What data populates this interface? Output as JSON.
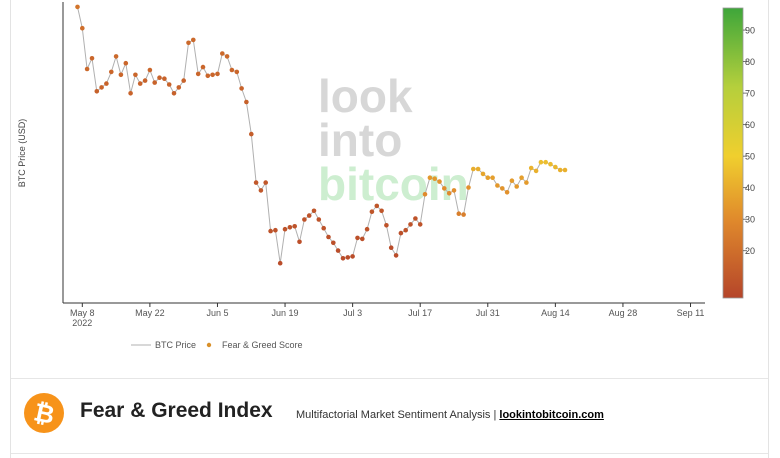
{
  "chart_data": {
    "type": "scatter",
    "ylabel": "BTC Price (USD)",
    "x_ticks": [
      {
        "label": "May 8",
        "sublabel": "2022",
        "day": 128
      },
      {
        "label": "May 22",
        "day": 142
      },
      {
        "label": "Jun 5",
        "day": 156
      },
      {
        "label": "Jun 19",
        "day": 170
      },
      {
        "label": "Jul 3",
        "day": 184
      },
      {
        "label": "Jul 17",
        "day": 198
      },
      {
        "label": "Jul 31",
        "day": 212
      },
      {
        "label": "Aug 14",
        "day": 226
      },
      {
        "label": "Aug 28",
        "day": 240
      },
      {
        "label": "Sep 11",
        "day": 254
      }
    ],
    "xlim": [
      124,
      257
    ],
    "ylim": [
      10000,
      41000
    ],
    "series": [
      {
        "name": "BTC Price",
        "style": "line",
        "color": "#b0b0b0"
      },
      {
        "name": "Fear & Greed Score",
        "style": "marker",
        "color": "#d9902a"
      }
    ],
    "points": [
      {
        "day": 127,
        "price": 40500,
        "score": 22
      },
      {
        "day": 128,
        "price": 38300,
        "score": 20
      },
      {
        "day": 129,
        "price": 34100,
        "score": 18
      },
      {
        "day": 130,
        "price": 35200,
        "score": 17
      },
      {
        "day": 131,
        "price": 31800,
        "score": 15
      },
      {
        "day": 132,
        "price": 32200,
        "score": 16
      },
      {
        "day": 133,
        "price": 32600,
        "score": 16
      },
      {
        "day": 134,
        "price": 33800,
        "score": 17
      },
      {
        "day": 135,
        "price": 35400,
        "score": 18
      },
      {
        "day": 136,
        "price": 33500,
        "score": 17
      },
      {
        "day": 137,
        "price": 34700,
        "score": 17
      },
      {
        "day": 138,
        "price": 31600,
        "score": 16
      },
      {
        "day": 139,
        "price": 33500,
        "score": 17
      },
      {
        "day": 140,
        "price": 32600,
        "score": 16
      },
      {
        "day": 141,
        "price": 32900,
        "score": 16
      },
      {
        "day": 142,
        "price": 34000,
        "score": 17
      },
      {
        "day": 143,
        "price": 32700,
        "score": 16
      },
      {
        "day": 144,
        "price": 33200,
        "score": 16
      },
      {
        "day": 145,
        "price": 33100,
        "score": 16
      },
      {
        "day": 146,
        "price": 32500,
        "score": 16
      },
      {
        "day": 147,
        "price": 31600,
        "score": 15
      },
      {
        "day": 148,
        "price": 32200,
        "score": 16
      },
      {
        "day": 149,
        "price": 32900,
        "score": 16
      },
      {
        "day": 150,
        "price": 36800,
        "score": 18
      },
      {
        "day": 151,
        "price": 37100,
        "score": 18
      },
      {
        "day": 152,
        "price": 33600,
        "score": 17
      },
      {
        "day": 153,
        "price": 34300,
        "score": 17
      },
      {
        "day": 154,
        "price": 33400,
        "score": 17
      },
      {
        "day": 155,
        "price": 33500,
        "score": 17
      },
      {
        "day": 156,
        "price": 33600,
        "score": 17
      },
      {
        "day": 157,
        "price": 35700,
        "score": 18
      },
      {
        "day": 158,
        "price": 35400,
        "score": 18
      },
      {
        "day": 159,
        "price": 34000,
        "score": 17
      },
      {
        "day": 160,
        "price": 33800,
        "score": 17
      },
      {
        "day": 161,
        "price": 32100,
        "score": 16
      },
      {
        "day": 162,
        "price": 30700,
        "score": 15
      },
      {
        "day": 163,
        "price": 27400,
        "score": 14
      },
      {
        "day": 164,
        "price": 22400,
        "score": 12
      },
      {
        "day": 165,
        "price": 21600,
        "score": 12
      },
      {
        "day": 166,
        "price": 22400,
        "score": 12
      },
      {
        "day": 167,
        "price": 17400,
        "score": 10
      },
      {
        "day": 168,
        "price": 17500,
        "score": 10
      },
      {
        "day": 169,
        "price": 14100,
        "score": 8
      },
      {
        "day": 170,
        "price": 17600,
        "score": 10
      },
      {
        "day": 171,
        "price": 17800,
        "score": 10
      },
      {
        "day": 172,
        "price": 17900,
        "score": 10
      },
      {
        "day": 173,
        "price": 16300,
        "score": 9
      },
      {
        "day": 174,
        "price": 18600,
        "score": 10
      },
      {
        "day": 175,
        "price": 19000,
        "score": 10
      },
      {
        "day": 176,
        "price": 19500,
        "score": 11
      },
      {
        "day": 177,
        "price": 18600,
        "score": 10
      },
      {
        "day": 178,
        "price": 17700,
        "score": 10
      },
      {
        "day": 179,
        "price": 16800,
        "score": 9
      },
      {
        "day": 180,
        "price": 16200,
        "score": 9
      },
      {
        "day": 181,
        "price": 15400,
        "score": 8
      },
      {
        "day": 182,
        "price": 14600,
        "score": 8
      },
      {
        "day": 183,
        "price": 14700,
        "score": 8
      },
      {
        "day": 184,
        "price": 14800,
        "score": 8
      },
      {
        "day": 185,
        "price": 16700,
        "score": 9
      },
      {
        "day": 186,
        "price": 16600,
        "score": 9
      },
      {
        "day": 187,
        "price": 17600,
        "score": 10
      },
      {
        "day": 188,
        "price": 19400,
        "score": 11
      },
      {
        "day": 189,
        "price": 20000,
        "score": 11
      },
      {
        "day": 190,
        "price": 19500,
        "score": 11
      },
      {
        "day": 191,
        "price": 18000,
        "score": 10
      },
      {
        "day": 192,
        "price": 15700,
        "score": 8
      },
      {
        "day": 193,
        "price": 14900,
        "score": 8
      },
      {
        "day": 194,
        "price": 17200,
        "score": 9
      },
      {
        "day": 195,
        "price": 17500,
        "score": 10
      },
      {
        "day": 196,
        "price": 18100,
        "score": 10
      },
      {
        "day": 197,
        "price": 18700,
        "score": 10
      },
      {
        "day": 198,
        "price": 18100,
        "score": 10
      },
      {
        "day": 199,
        "price": 21200,
        "score": 30
      },
      {
        "day": 200,
        "price": 22900,
        "score": 34
      },
      {
        "day": 201,
        "price": 22800,
        "score": 34
      },
      {
        "day": 202,
        "price": 22500,
        "score": 33
      },
      {
        "day": 203,
        "price": 21800,
        "score": 31
      },
      {
        "day": 204,
        "price": 21300,
        "score": 30
      },
      {
        "day": 205,
        "price": 21600,
        "score": 31
      },
      {
        "day": 206,
        "price": 19200,
        "score": 26
      },
      {
        "day": 207,
        "price": 19100,
        "score": 26
      },
      {
        "day": 208,
        "price": 21900,
        "score": 32
      },
      {
        "day": 209,
        "price": 23800,
        "score": 40
      },
      {
        "day": 210,
        "price": 23800,
        "score": 40
      },
      {
        "day": 211,
        "price": 23300,
        "score": 38
      },
      {
        "day": 212,
        "price": 22900,
        "score": 36
      },
      {
        "day": 213,
        "price": 22900,
        "score": 36
      },
      {
        "day": 214,
        "price": 22100,
        "score": 34
      },
      {
        "day": 215,
        "price": 21800,
        "score": 33
      },
      {
        "day": 216,
        "price": 21400,
        "score": 32
      },
      {
        "day": 217,
        "price": 22600,
        "score": 35
      },
      {
        "day": 218,
        "price": 22000,
        "score": 34
      },
      {
        "day": 219,
        "price": 22900,
        "score": 36
      },
      {
        "day": 220,
        "price": 22400,
        "score": 35
      },
      {
        "day": 221,
        "price": 23900,
        "score": 42
      },
      {
        "day": 222,
        "price": 23600,
        "score": 41
      },
      {
        "day": 223,
        "price": 24500,
        "score": 45
      },
      {
        "day": 224,
        "price": 24500,
        "score": 45
      },
      {
        "day": 225,
        "price": 24300,
        "score": 44
      },
      {
        "day": 226,
        "price": 24000,
        "score": 43
      },
      {
        "day": 227,
        "price": 23700,
        "score": 41
      },
      {
        "day": 228,
        "price": 23700,
        "score": 41
      }
    ],
    "colorbar": {
      "ticks": [
        20,
        30,
        40,
        50,
        60,
        70,
        80,
        90
      ],
      "range": [
        5,
        97
      ],
      "stops": [
        {
          "value": 5,
          "color": "#b5452a"
        },
        {
          "value": 30,
          "color": "#e08a2c"
        },
        {
          "value": 50,
          "color": "#f0cf2e"
        },
        {
          "value": 72,
          "color": "#b5cf3c"
        },
        {
          "value": 97,
          "color": "#3ea63a"
        }
      ]
    }
  },
  "watermark": {
    "lines": [
      "look",
      "into",
      "bitcoin"
    ],
    "colors": [
      "#d7d7d7",
      "#d7d7d7",
      "#cdeed0"
    ]
  },
  "footer": {
    "logo_symbol": "₿",
    "title": "Fear & Greed Index",
    "subtitle_text": "Multifactorial Market Sentiment Analysis | ",
    "subtitle_link": "lookintobitcoin.com"
  }
}
